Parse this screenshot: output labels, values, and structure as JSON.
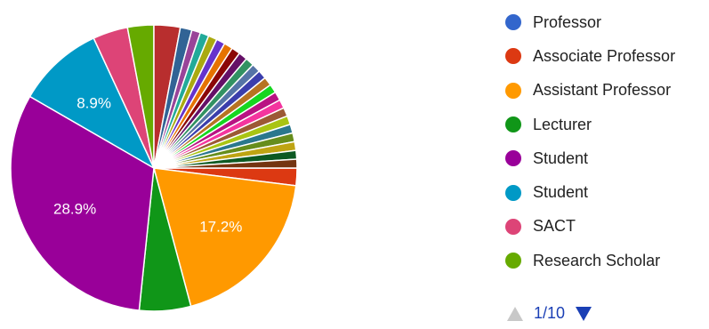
{
  "chart_data": {
    "type": "pie",
    "slices": [
      {
        "label": "",
        "value": 1.8,
        "color": "#dc3912"
      },
      {
        "label": "17.2%",
        "value": 17.2,
        "color": "#ff9900"
      },
      {
        "label": "",
        "value": 5.3,
        "color": "#109618"
      },
      {
        "label": "28.9%",
        "value": 28.9,
        "color": "#990099"
      },
      {
        "label": "8.9%",
        "value": 8.9,
        "color": "#0099c6"
      },
      {
        "label": "",
        "value": 3.6,
        "color": "#dd4477"
      },
      {
        "label": "",
        "value": 2.7,
        "color": "#66aa00"
      },
      {
        "label": "",
        "value": 2.7,
        "color": "#b82e2e"
      },
      {
        "label": "",
        "value": 1.2,
        "color": "#316395"
      },
      {
        "label": "",
        "value": 0.9,
        "color": "#994499"
      },
      {
        "label": "",
        "value": 0.9,
        "color": "#22aa99"
      },
      {
        "label": "",
        "value": 0.9,
        "color": "#aaaa11"
      },
      {
        "label": "",
        "value": 0.9,
        "color": "#6633cc"
      },
      {
        "label": "",
        "value": 0.9,
        "color": "#e67300"
      },
      {
        "label": "",
        "value": 0.9,
        "color": "#8b0707"
      },
      {
        "label": "",
        "value": 0.9,
        "color": "#651067"
      },
      {
        "label": "",
        "value": 0.9,
        "color": "#329262"
      },
      {
        "label": "",
        "value": 0.9,
        "color": "#5574a6"
      },
      {
        "label": "",
        "value": 0.9,
        "color": "#3b3eac"
      },
      {
        "label": "",
        "value": 0.9,
        "color": "#b77322"
      },
      {
        "label": "",
        "value": 0.9,
        "color": "#16d620"
      },
      {
        "label": "",
        "value": 0.9,
        "color": "#b91383"
      },
      {
        "label": "",
        "value": 0.9,
        "color": "#f4359e"
      },
      {
        "label": "",
        "value": 0.9,
        "color": "#9c5935"
      },
      {
        "label": "",
        "value": 0.9,
        "color": "#a9c413"
      },
      {
        "label": "",
        "value": 0.9,
        "color": "#2a778d"
      },
      {
        "label": "",
        "value": 0.9,
        "color": "#668d1c"
      },
      {
        "label": "",
        "value": 0.9,
        "color": "#bea413"
      },
      {
        "label": "",
        "value": 0.9,
        "color": "#0c5922"
      },
      {
        "label": "",
        "value": 0.9,
        "color": "#743411"
      }
    ],
    "legend": [
      {
        "label": "Professor",
        "color": "#3366cc"
      },
      {
        "label": "Associate Professor",
        "color": "#dc3912"
      },
      {
        "label": "Assistant Professor",
        "color": "#ff9900"
      },
      {
        "label": "Lecturer",
        "color": "#109618"
      },
      {
        "label": "Student",
        "color": "#990099"
      },
      {
        "label": "Student",
        "color": "#0099c6"
      },
      {
        "label": "SACT",
        "color": "#dd4477"
      },
      {
        "label": "Research Scholar",
        "color": "#66aa00"
      }
    ],
    "legend_position": "right",
    "start_angle": "east",
    "direction": "clockwise"
  },
  "pager": {
    "text": "1/10",
    "prev_color": "#c8c8c8",
    "next_color": "#1a3fb5"
  }
}
